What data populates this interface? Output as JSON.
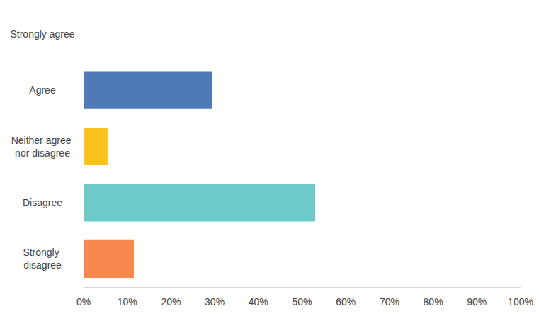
{
  "chart_data": {
    "type": "bar",
    "orientation": "horizontal",
    "categories": [
      "Strongly agree",
      "Agree",
      "Neither agree nor disagree",
      "Disagree",
      "Strongly disagree"
    ],
    "values": [
      0,
      29.5,
      5.5,
      53,
      11.5
    ],
    "colors": [
      "#2e9e8f",
      "#5079b8",
      "#f8c11c",
      "#6dcacb",
      "#f7894f"
    ],
    "xlim": [
      0,
      100
    ],
    "xticks": [
      {
        "value": 0,
        "label": "0%"
      },
      {
        "value": 10,
        "label": "10%"
      },
      {
        "value": 20,
        "label": "20%"
      },
      {
        "value": 30,
        "label": "30%"
      },
      {
        "value": 40,
        "label": "40%"
      },
      {
        "value": 50,
        "label": "50%"
      },
      {
        "value": 60,
        "label": "60%"
      },
      {
        "value": 70,
        "label": "70%"
      },
      {
        "value": 80,
        "label": "80%"
      },
      {
        "value": 90,
        "label": "90%"
      },
      {
        "value": 100,
        "label": "100%"
      }
    ],
    "grid": true
  }
}
